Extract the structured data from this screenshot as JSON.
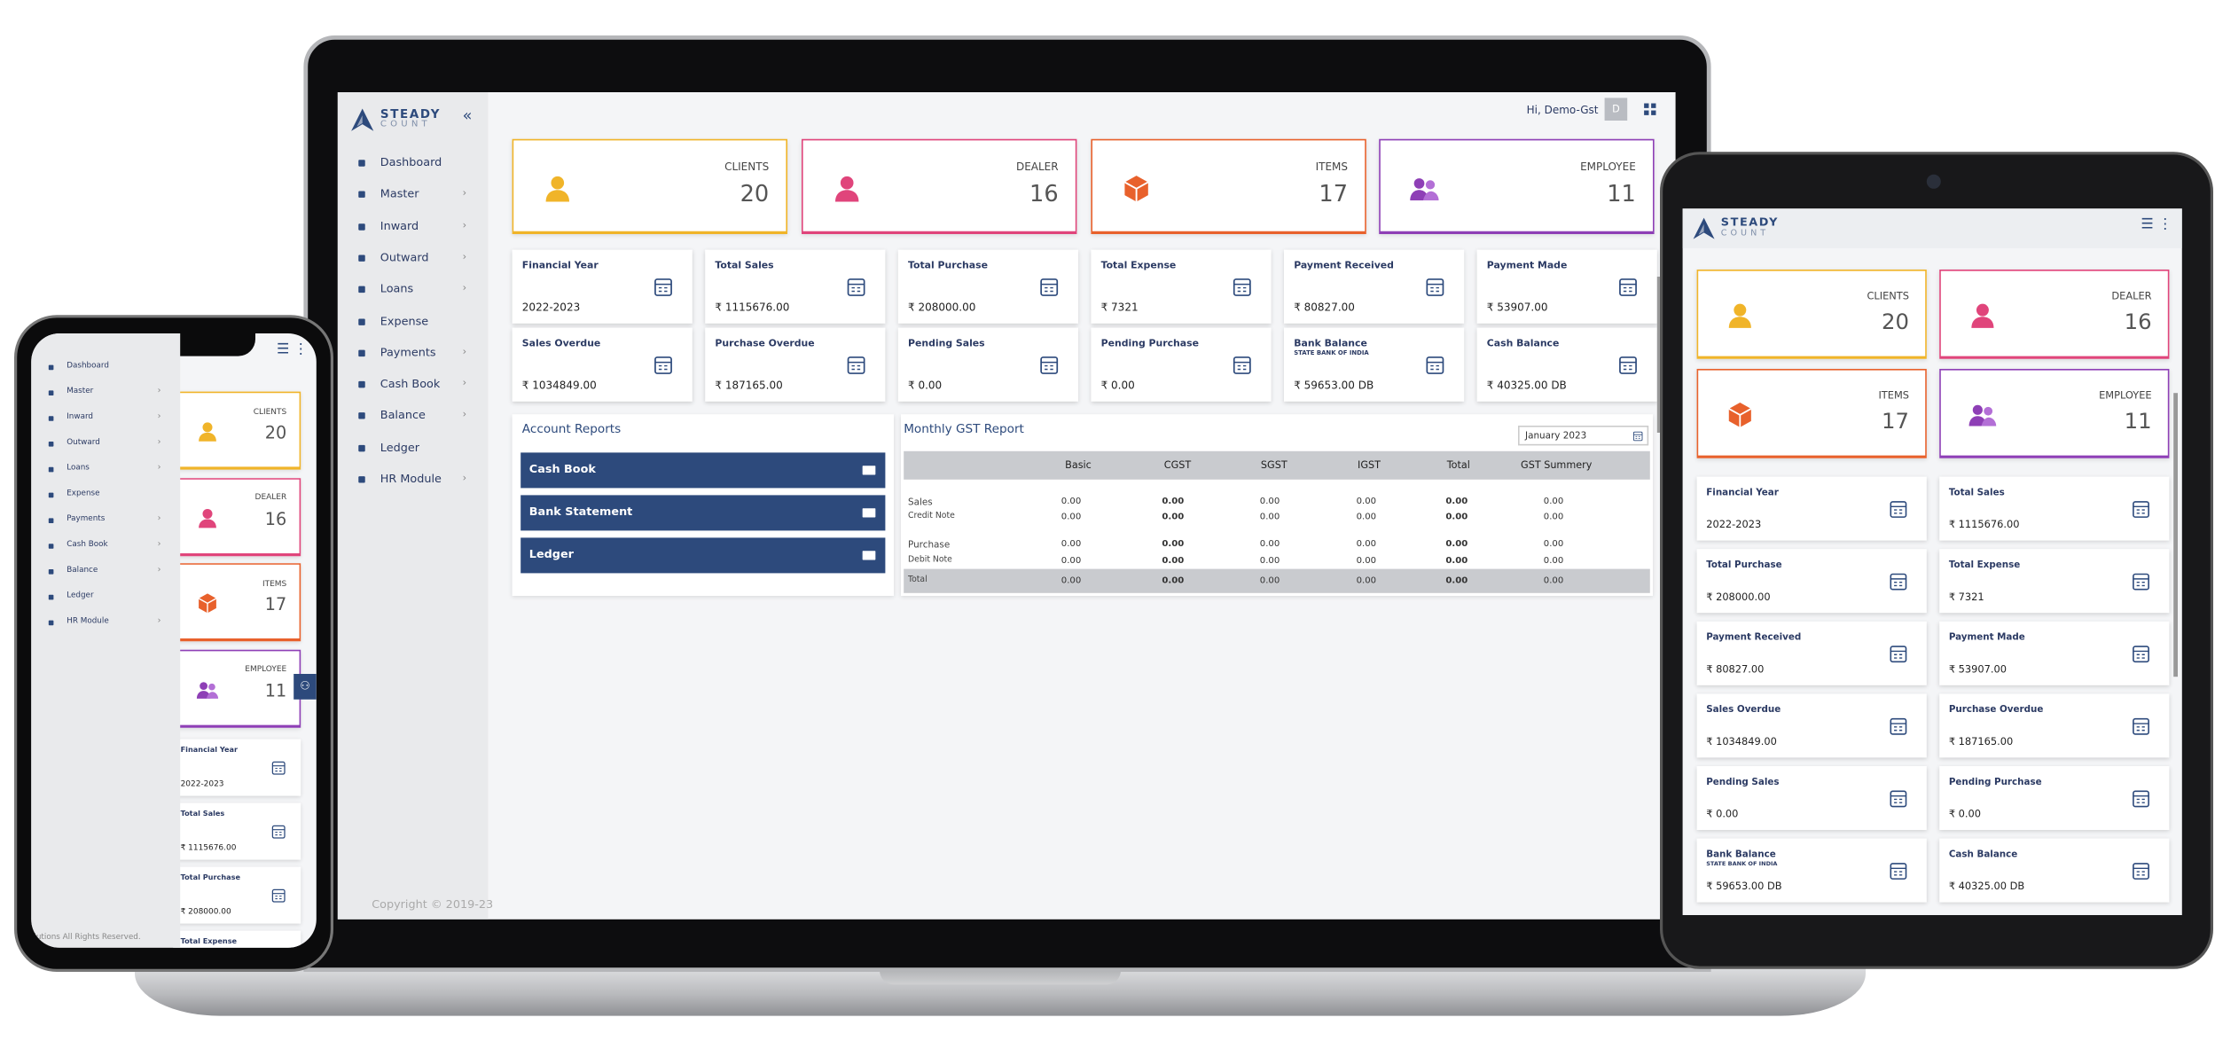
{
  "brand": {
    "name": "STEADY",
    "sub": "COUNT"
  },
  "user": {
    "greeting": "Hi, Demo-Gst",
    "initial": "D"
  },
  "sidebar": {
    "items": [
      "Dashboard",
      "Master",
      "Inward",
      "Outward",
      "Loans",
      "Expense",
      "Payments",
      "Cash Book",
      "Balance",
      "Ledger",
      "HR Module"
    ],
    "copyright": "Copyright © 2019-23",
    "footer_partial": "lutions All Rights Reserved."
  },
  "summary_cards": [
    {
      "label": "CLIENTS",
      "value": 20
    },
    {
      "label": "DEALER",
      "value": 16
    },
    {
      "label": "ITEMS",
      "value": 17
    },
    {
      "label": "EMPLOYEE",
      "value": 11
    }
  ],
  "stat_cards": [
    {
      "label": "Financial Year",
      "value": "2022-2023"
    },
    {
      "label": "Total Sales",
      "value": "₹ 1115676.00"
    },
    {
      "label": "Total Purchase",
      "value": "₹ 208000.00"
    },
    {
      "label": "Total Expense",
      "value": "₹ 7321"
    },
    {
      "label": "Payment Received",
      "value": "₹ 80827.00"
    },
    {
      "label": "Payment Made",
      "value": "₹ 53907.00"
    },
    {
      "label": "Sales Overdue",
      "value": "₹ 1034849.00"
    },
    {
      "label": "Purchase Overdue",
      "value": "₹ 187165.00"
    },
    {
      "label": "Pending Sales",
      "value": "₹ 0.00"
    },
    {
      "label": "Pending Purchase",
      "value": "₹ 0.00"
    },
    {
      "label": "Bank Balance",
      "sublabel": "STATE BANK OF INDIA",
      "value": "₹ 59653.00 DB"
    },
    {
      "label": "Cash Balance",
      "value": "₹ 40325.00 DB"
    }
  ],
  "account_reports": {
    "title": "Account Reports",
    "buttons": [
      "Cash Book",
      "Bank Statement",
      "Ledger"
    ]
  },
  "gst_report": {
    "title": "Monthly GST Report",
    "month": "January 2023",
    "columns": [
      "Basic",
      "CGST",
      "SGST",
      "IGST",
      "Total",
      "GST Summery"
    ],
    "rows": [
      [
        "Sales",
        "0.00",
        "0.00",
        "0.00",
        "0.00",
        "0.00",
        "0.00"
      ],
      [
        "Credit Note",
        "0.00",
        "0.00",
        "0.00",
        "0.00",
        "0.00",
        "0.00"
      ],
      [
        "Purchase",
        "0.00",
        "0.00",
        "0.00",
        "0.00",
        "0.00",
        "0.00"
      ],
      [
        "Debit Note",
        "0.00",
        "0.00",
        "0.00",
        "0.00",
        "0.00",
        "0.00"
      ]
    ],
    "total": [
      "Total",
      "0.00",
      "0.00",
      "0.00",
      "0.00",
      "0.00",
      "0.00"
    ]
  }
}
